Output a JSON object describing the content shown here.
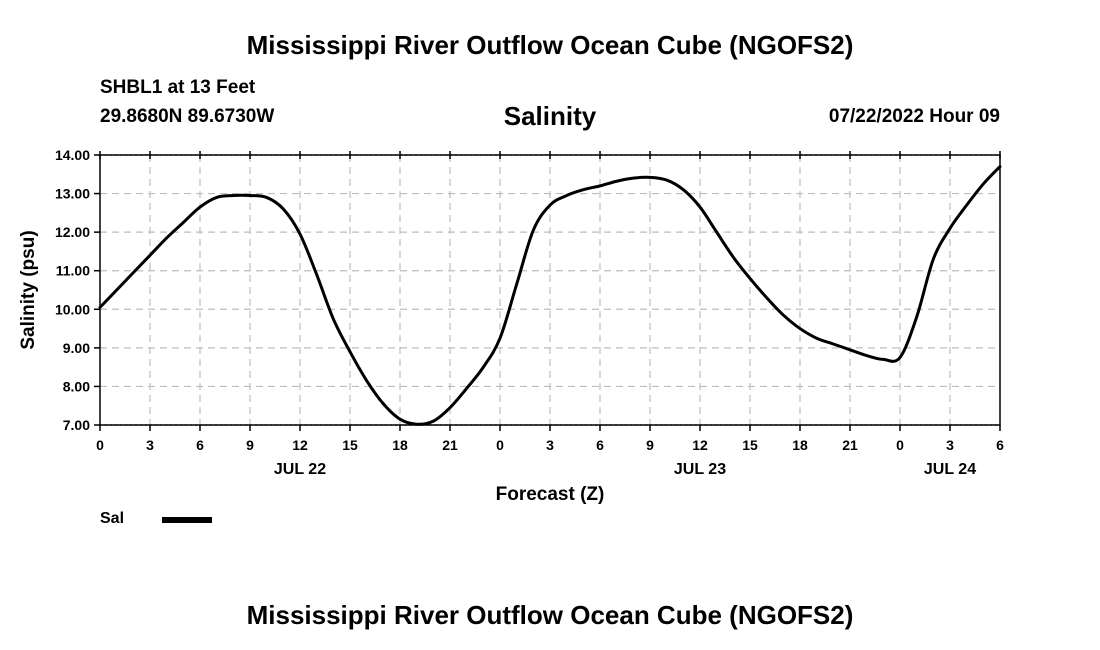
{
  "header": {
    "main_title": "Mississippi River Outflow Ocean Cube (NGOFS2)",
    "station": "SHBL1 at 13 Feet",
    "coordinates": "29.8680N  89.6730W",
    "chart_title": "Salinity",
    "timestamp": "07/22/2022 Hour 09"
  },
  "footer": {
    "main_title": "Mississippi River Outflow Ocean Cube (NGOFS2)"
  },
  "legend": {
    "label": "Sal",
    "color": "#000000"
  },
  "chart_data": {
    "type": "line",
    "title": "Salinity",
    "xlabel": "Forecast (Z)",
    "ylabel": "Salinity (psu)",
    "ylim": [
      7.0,
      14.0
    ],
    "xlim_hours": [
      0,
      54
    ],
    "y_ticks": [
      "7.00",
      "8.00",
      "9.00",
      "10.00",
      "11.00",
      "12.00",
      "13.00",
      "14.00"
    ],
    "x_ticks": [
      {
        "hour": 0,
        "label": "0"
      },
      {
        "hour": 3,
        "label": "3"
      },
      {
        "hour": 6,
        "label": "6"
      },
      {
        "hour": 9,
        "label": "9"
      },
      {
        "hour": 12,
        "label": "12"
      },
      {
        "hour": 15,
        "label": "15"
      },
      {
        "hour": 18,
        "label": "18"
      },
      {
        "hour": 21,
        "label": "21"
      },
      {
        "hour": 24,
        "label": "0"
      },
      {
        "hour": 27,
        "label": "3"
      },
      {
        "hour": 30,
        "label": "6"
      },
      {
        "hour": 33,
        "label": "9"
      },
      {
        "hour": 36,
        "label": "12"
      },
      {
        "hour": 39,
        "label": "15"
      },
      {
        "hour": 42,
        "label": "18"
      },
      {
        "hour": 45,
        "label": "21"
      },
      {
        "hour": 48,
        "label": "0"
      },
      {
        "hour": 51,
        "label": "3"
      },
      {
        "hour": 54,
        "label": "6"
      }
    ],
    "date_labels": [
      {
        "hour": 12,
        "label": "JUL 22"
      },
      {
        "hour": 36,
        "label": "JUL 23"
      },
      {
        "hour": 51,
        "label": "JUL 24"
      }
    ],
    "grid": true,
    "series": [
      {
        "name": "Sal",
        "x": [
          0,
          1,
          2,
          3,
          4,
          5,
          6,
          7,
          8,
          9,
          10,
          11,
          12,
          13,
          14,
          15,
          16,
          17,
          18,
          19,
          20,
          21,
          22,
          23,
          24,
          25,
          26,
          27,
          28,
          29,
          30,
          31,
          32,
          33,
          34,
          35,
          36,
          37,
          38,
          39,
          40,
          41,
          42,
          43,
          44,
          45,
          46,
          47,
          48,
          49,
          50,
          51,
          52,
          53,
          54
        ],
        "values": [
          10.05,
          10.5,
          10.95,
          11.4,
          11.85,
          12.25,
          12.65,
          12.9,
          12.95,
          12.95,
          12.9,
          12.6,
          11.95,
          10.9,
          9.75,
          8.9,
          8.15,
          7.55,
          7.15,
          7.02,
          7.1,
          7.45,
          7.95,
          8.5,
          9.25,
          10.65,
          12.05,
          12.7,
          12.95,
          13.1,
          13.2,
          13.32,
          13.4,
          13.42,
          13.35,
          13.1,
          12.65,
          12.0,
          11.35,
          10.8,
          10.3,
          9.85,
          9.5,
          9.25,
          9.1,
          8.95,
          8.8,
          8.7,
          8.75,
          9.8,
          11.3,
          12.1,
          12.7,
          13.25,
          13.7
        ]
      }
    ]
  }
}
